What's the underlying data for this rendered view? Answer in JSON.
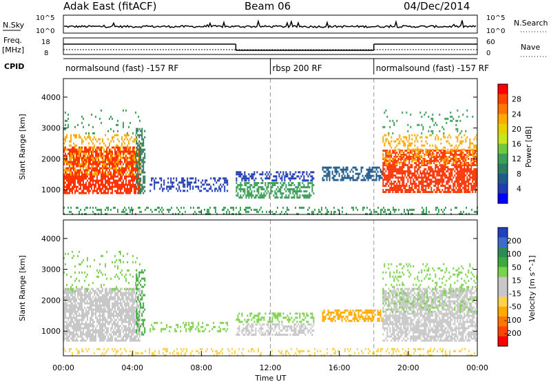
{
  "header": {
    "title": "Adak East (fitACF)",
    "beam": "Beam 06",
    "date": "04/Dec/2014"
  },
  "top_panels": {
    "nsky_label": "N.Sky",
    "nsearch_label": "N.Search",
    "nsky_ticks": [
      "10^5",
      "10^0"
    ],
    "nsearch_ticks": [
      "10^5",
      "10^0"
    ],
    "freq_label_1": "Freq.",
    "freq_label_2": "[MHz]",
    "freq_ticks": [
      "18",
      "8"
    ],
    "nave_label": "Nave",
    "nave_ticks": [
      "60",
      "0"
    ],
    "cpid_label": "CPID",
    "cpid_segments": [
      {
        "label": "normalsound (fast) -157 RF",
        "start_hour": 0,
        "end_hour": 12
      },
      {
        "label": "rbsp 200 RF",
        "start_hour": 12,
        "end_hour": 18
      },
      {
        "label": "normalsound (fast) -157 RF",
        "start_hour": 18,
        "end_hour": 24
      }
    ],
    "freq_steps": [
      {
        "start_hour": 0,
        "end_hour": 10,
        "level": "high"
      },
      {
        "start_hour": 10,
        "end_hour": 18,
        "level": "low"
      },
      {
        "start_hour": 18,
        "end_hour": 24,
        "level": "high"
      }
    ]
  },
  "chart_data": [
    {
      "type": "heatmap",
      "panel": "power",
      "ylabel": "Slant Range [km]",
      "ylim": [
        200,
        4600
      ],
      "yticks": [
        "1000",
        "2000",
        "3000",
        "4000"
      ],
      "xlim_hours": [
        0,
        24
      ],
      "colorbar_label": "Power [dB]",
      "colorbar_ticks": [
        "28",
        "24",
        "20",
        "16",
        "12",
        "8",
        "4"
      ],
      "colorbar_colors": [
        "#ff0000",
        "#ff4400",
        "#ff7700",
        "#ffaa00",
        "#e6d200",
        "#c8e620",
        "#6ec840",
        "#3ca05a",
        "#2e7d5e",
        "#1f5a8c",
        "#1f3cb4",
        "#0000ff"
      ],
      "scatter_regions": [
        {
          "h0": 0.0,
          "h1": 4.4,
          "r0": 900,
          "r1": 2400,
          "color": "#ff3300",
          "density": 0.75
        },
        {
          "h0": 0.0,
          "h1": 4.4,
          "r0": 1500,
          "r1": 2800,
          "color": "#ffaa00",
          "density": 0.3
        },
        {
          "h0": 0.0,
          "h1": 4.4,
          "r0": 2800,
          "r1": 3600,
          "color": "#3ca05a",
          "density": 0.08
        },
        {
          "h0": 4.2,
          "h1": 4.7,
          "r0": 900,
          "r1": 3000,
          "color": "#2e7d5e",
          "density": 0.5
        },
        {
          "h0": 5.0,
          "h1": 9.5,
          "r0": 950,
          "r1": 1400,
          "color": "#1f3cb4",
          "density": 0.35
        },
        {
          "h0": 10.0,
          "h1": 14.5,
          "r0": 750,
          "r1": 1250,
          "color": "#3ca05a",
          "density": 0.55
        },
        {
          "h0": 10.0,
          "h1": 14.5,
          "r0": 1300,
          "r1": 1600,
          "color": "#1f3cb4",
          "density": 0.45
        },
        {
          "h0": 15.0,
          "h1": 18.5,
          "r0": 1300,
          "r1": 1750,
          "color": "#1f5a8c",
          "density": 0.55
        },
        {
          "h0": 18.5,
          "h1": 24.0,
          "r0": 900,
          "r1": 2300,
          "color": "#ff3300",
          "density": 0.7
        },
        {
          "h0": 18.5,
          "h1": 24.0,
          "r0": 1800,
          "r1": 2800,
          "color": "#ffaa00",
          "density": 0.3
        },
        {
          "h0": 18.5,
          "h1": 24.0,
          "r0": 2800,
          "r1": 3600,
          "color": "#3ca05a",
          "density": 0.08
        },
        {
          "h0": 0.0,
          "h1": 24.0,
          "r0": 200,
          "r1": 450,
          "color": "#3ca05a",
          "density": 0.25
        }
      ]
    },
    {
      "type": "heatmap",
      "panel": "velocity",
      "ylabel": "Slant Range [km]",
      "ylim": [
        200,
        4600
      ],
      "yticks": [
        "1000",
        "2000",
        "3000",
        "4000"
      ],
      "xlim_hours": [
        0,
        24
      ],
      "xticks": [
        "00:00",
        "04:00",
        "08:00",
        "12:00",
        "16:00",
        "20:00",
        "00:00"
      ],
      "xlabel": "Time UT",
      "colorbar_label": "Velocity [m s^-1]",
      "colorbar_ticks": [
        "200",
        "100",
        "50",
        "15",
        "-15",
        "-50",
        "-100",
        "-200"
      ],
      "colorbar_colors": [
        "#2040c0",
        "#3c6cc8",
        "#2e8b57",
        "#3caa3c",
        "#7cd24c",
        "#c8c8c8",
        "#c8c8c8",
        "#ffd24c",
        "#ffaa00",
        "#ff7700",
        "#ff4400",
        "#ff0000"
      ],
      "scatter_regions": [
        {
          "h0": 0.0,
          "h1": 4.4,
          "r0": 700,
          "r1": 2400,
          "color": "#c8c8c8",
          "density": 0.75
        },
        {
          "h0": 0.0,
          "h1": 4.4,
          "r0": 2300,
          "r1": 3600,
          "color": "#7cd24c",
          "density": 0.1
        },
        {
          "h0": 4.2,
          "h1": 4.7,
          "r0": 900,
          "r1": 3000,
          "color": "#3caa3c",
          "density": 0.4
        },
        {
          "h0": 5.0,
          "h1": 9.5,
          "r0": 1000,
          "r1": 1300,
          "color": "#7cd24c",
          "density": 0.3
        },
        {
          "h0": 10.0,
          "h1": 14.5,
          "r0": 850,
          "r1": 1250,
          "color": "#c8c8c8",
          "density": 0.5
        },
        {
          "h0": 10.0,
          "h1": 14.5,
          "r0": 1300,
          "r1": 1600,
          "color": "#7cd24c",
          "density": 0.4
        },
        {
          "h0": 15.0,
          "h1": 18.5,
          "r0": 1300,
          "r1": 1700,
          "color": "#ffaa00",
          "density": 0.55
        },
        {
          "h0": 18.5,
          "h1": 24.0,
          "r0": 700,
          "r1": 2400,
          "color": "#c8c8c8",
          "density": 0.7
        },
        {
          "h0": 18.5,
          "h1": 24.0,
          "r0": 1600,
          "r1": 3200,
          "color": "#7cd24c",
          "density": 0.15
        },
        {
          "h0": 0.0,
          "h1": 24.0,
          "r0": 200,
          "r1": 450,
          "color": "#ffd24c",
          "density": 0.25
        }
      ]
    }
  ]
}
